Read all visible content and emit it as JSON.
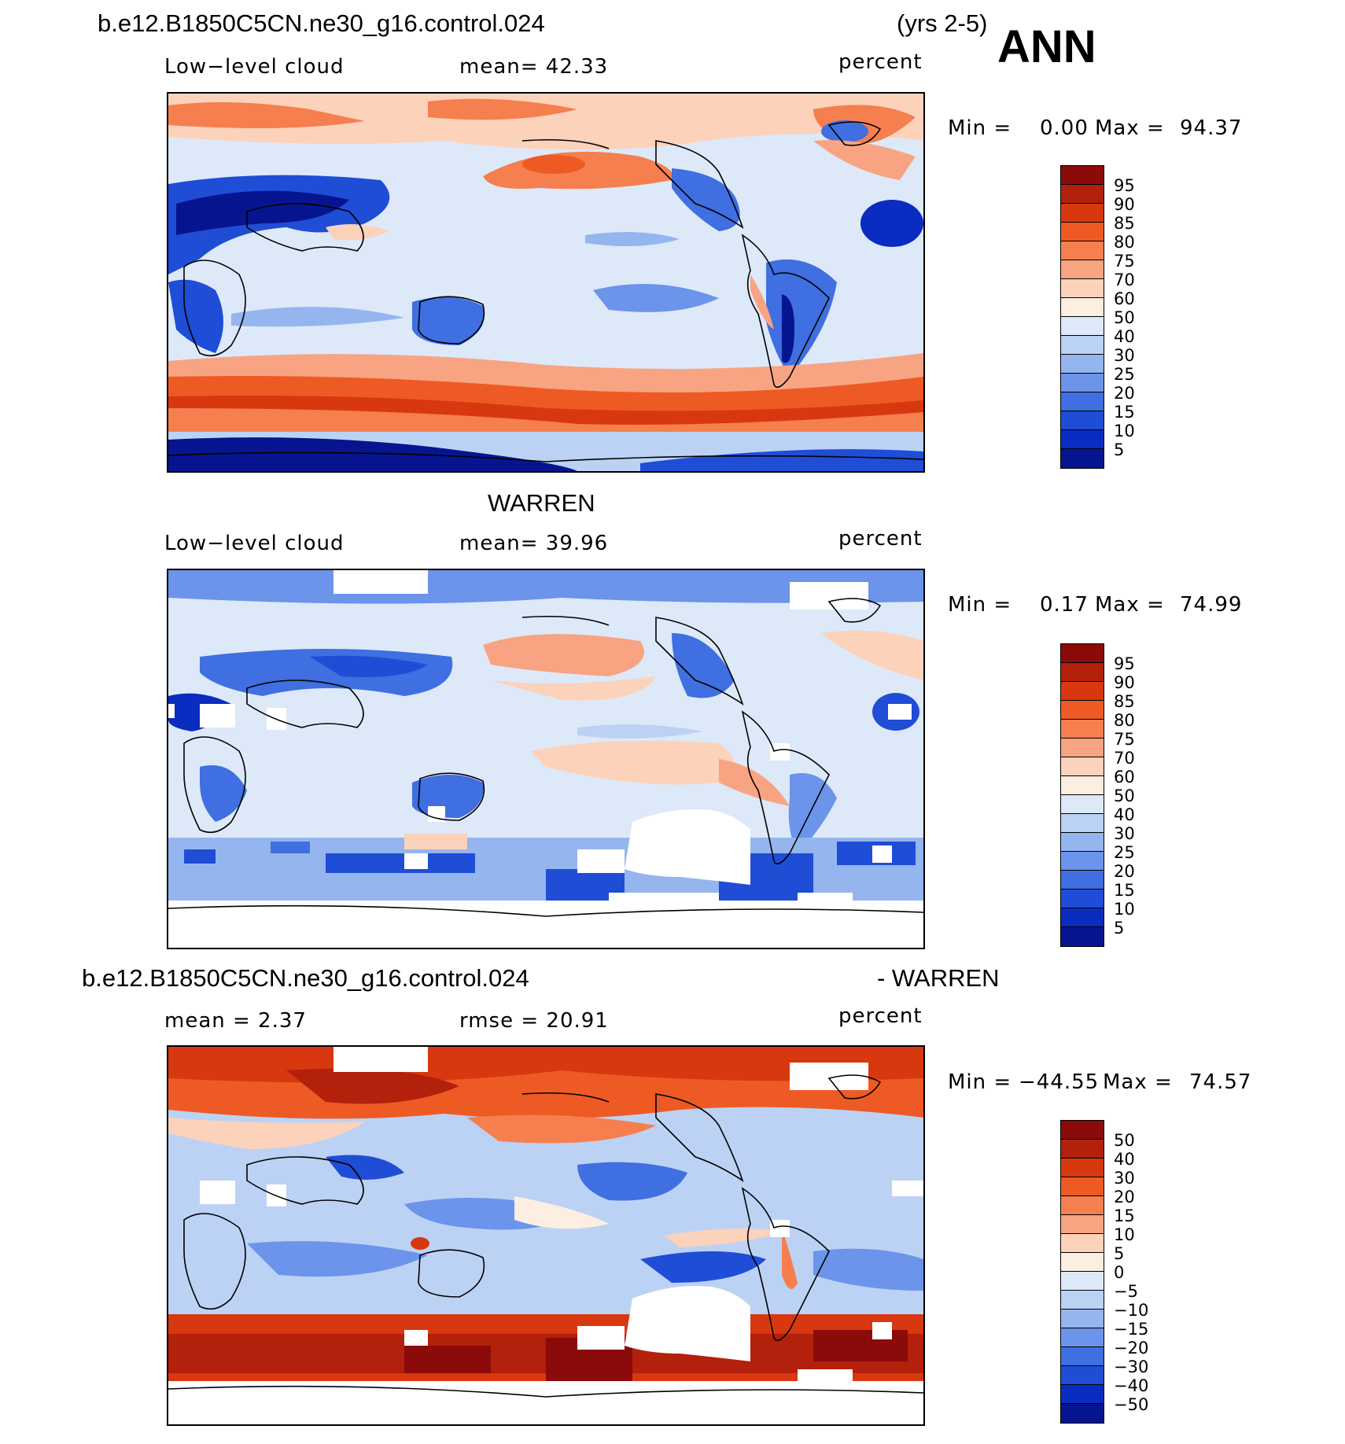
{
  "header": {
    "case_name": "b.e12.B1850C5CN.ne30_g16.control.024",
    "years": "(yrs 2-5)",
    "season": "ANN"
  },
  "panels": [
    {
      "title": "",
      "left_label": "Low−level cloud",
      "center_label": "mean=   42.33",
      "units": "percent",
      "stats": {
        "min_label": "Min =",
        "min": "0.00",
        "max_label": "Max =",
        "max": "94.37"
      },
      "colorbar_labels": [
        "95",
        "90",
        "85",
        "80",
        "75",
        "70",
        "60",
        "50",
        "40",
        "30",
        "25",
        "20",
        "15",
        "10",
        "5"
      ]
    },
    {
      "title": "WARREN",
      "left_label": "Low−level cloud",
      "center_label": "mean=   39.96",
      "units": "percent",
      "stats": {
        "min_label": "Min =",
        "min": "0.17",
        "max_label": "Max =",
        "max": "74.99"
      },
      "colorbar_labels": [
        "95",
        "90",
        "85",
        "80",
        "75",
        "70",
        "60",
        "50",
        "40",
        "30",
        "25",
        "20",
        "15",
        "10",
        "5"
      ]
    },
    {
      "title_left": "b.e12.B1850C5CN.ne30_g16.control.024",
      "title_right": "- WARREN",
      "left_label": "mean =     2.37",
      "center_label": "rmse =    20.91",
      "units": "percent",
      "stats": {
        "min_label": "Min =",
        "min": "−44.55",
        "max_label": "Max =",
        "max": "74.57"
      },
      "colorbar_labels": [
        "50",
        "40",
        "30",
        "20",
        "15",
        "10",
        "5",
        "0",
        "−5",
        "−10",
        "−15",
        "−20",
        "−30",
        "−40",
        "−50"
      ]
    }
  ],
  "colormap": [
    "#8b0a0a",
    "#b3200c",
    "#d8380f",
    "#ee5a24",
    "#f57f4e",
    "#f8a483",
    "#fcd2bb",
    "#fdeee2",
    "#dde9f9",
    "#bcd2f4",
    "#95b5ef",
    "#6b94ea",
    "#3f6fe0",
    "#1f4dd6",
    "#0a2cc0",
    "#06158f"
  ]
}
